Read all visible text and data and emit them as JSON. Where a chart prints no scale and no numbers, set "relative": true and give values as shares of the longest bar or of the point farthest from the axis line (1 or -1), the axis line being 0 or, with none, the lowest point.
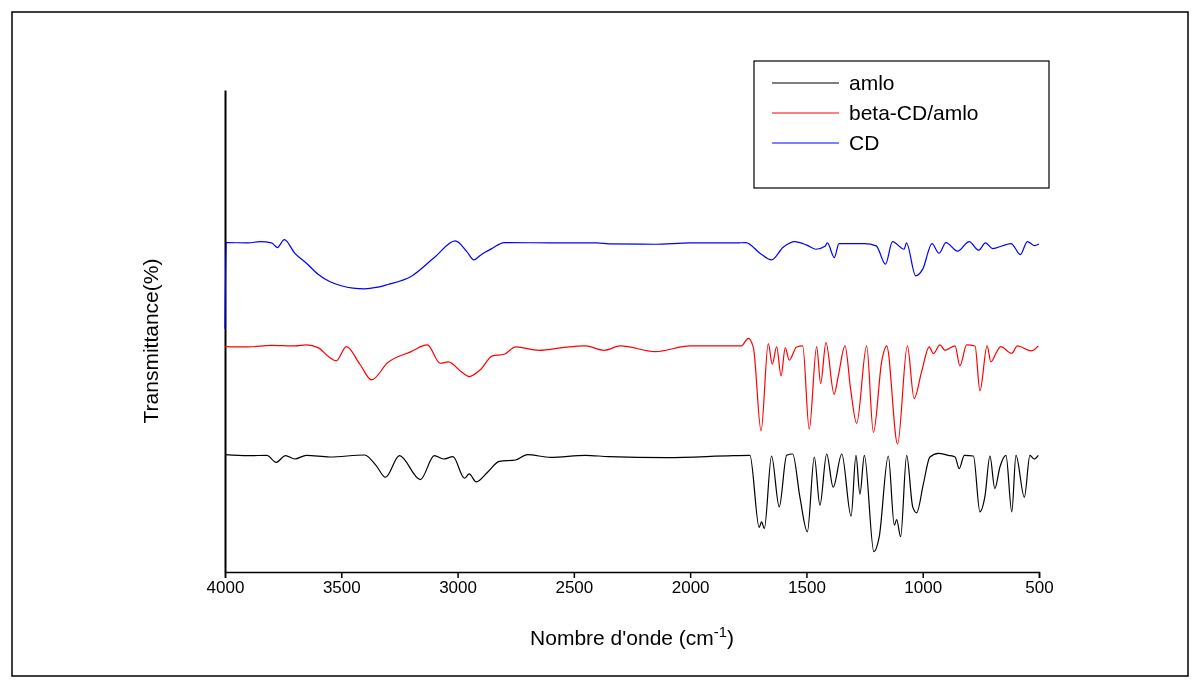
{
  "chart_data": {
    "type": "line",
    "relative": true,
    "xlabel": "Nombre d'onde (cm$^{-1}$)",
    "ylabel": "Transmittance(%)",
    "xlim": [
      4000,
      500
    ],
    "xticks": [
      4000,
      3500,
      3000,
      2500,
      2000,
      1500,
      1000,
      500
    ],
    "legend": "top right",
    "grid": false,
    "marker": "none",
    "line_style": "solid",
    "series": [
      {
        "name": "amlo",
        "color": "#000000",
        "x": [
          4000,
          3900,
          3820,
          3780,
          3740,
          3700,
          3650,
          3550,
          3400,
          3350,
          3310,
          3250,
          3160,
          3100,
          3060,
          3020,
          2970,
          2950,
          2920,
          2870,
          2820,
          2750,
          2700,
          2600,
          2450,
          2350,
          2100,
          1814,
          1743,
          1703,
          1693,
          1681,
          1650,
          1617,
          1585,
          1559,
          1528,
          1496,
          1466,
          1442,
          1413,
          1385,
          1348,
          1308,
          1287,
          1270,
          1251,
          1210,
          1187,
          1148,
          1122,
          1112,
          1095,
          1069,
          1043,
          1026,
          997,
          969,
          933,
          890,
          861,
          843,
          821,
          782,
          754,
          732,
          711,
          690,
          668,
          642,
          617,
          599,
          563,
          539,
          521,
          503
        ],
        "values": [
          0.353,
          0.35,
          0.351,
          0.33,
          0.35,
          0.34,
          0.351,
          0.346,
          0.352,
          0.32,
          0.285,
          0.35,
          0.278,
          0.35,
          0.34,
          0.347,
          0.282,
          0.295,
          0.271,
          0.301,
          0.333,
          0.337,
          0.353,
          0.345,
          0.351,
          0.347,
          0.344,
          0.35,
          0.351,
          0.134,
          0.151,
          0.131,
          0.349,
          0.196,
          0.351,
          0.355,
          0.225,
          0.121,
          0.346,
          0.201,
          0.355,
          0.255,
          0.355,
          0.168,
          0.351,
          0.234,
          0.351,
          0.061,
          0.106,
          0.349,
          0.141,
          0.158,
          0.106,
          0.351,
          0.196,
          0.178,
          0.266,
          0.346,
          0.357,
          0.351,
          0.346,
          0.311,
          0.351,
          0.349,
          0.181,
          0.23,
          0.349,
          0.251,
          0.316,
          0.351,
          0.181,
          0.351,
          0.225,
          0.351,
          0.34,
          0.351
        ]
      },
      {
        "name": "beta-CD/amlo",
        "color": "#ff0000",
        "x": [
          4000,
          3900,
          3800,
          3700,
          3650,
          3600,
          3550,
          3522,
          3478,
          3420,
          3370,
          3300,
          3200,
          3130,
          3075,
          3040,
          2980,
          2950,
          2900,
          2850,
          2800,
          2750,
          2650,
          2550,
          2450,
          2370,
          2300,
          2150,
          2000,
          1800,
          1780,
          1750,
          1728,
          1695,
          1664,
          1647,
          1628,
          1609,
          1591,
          1574,
          1542,
          1516,
          1488,
          1456,
          1439,
          1416,
          1381,
          1363,
          1334,
          1310,
          1284,
          1241,
          1212,
          1176,
          1155,
          1108,
          1066,
          1037,
          1004,
          972,
          954,
          926,
          904,
          861,
          840,
          811,
          775,
          754,
          723,
          707,
          682,
          665,
          617,
          593,
          532,
          503
        ],
        "values": [
          0.678,
          0.677,
          0.682,
          0.68,
          0.683,
          0.675,
          0.645,
          0.635,
          0.678,
          0.625,
          0.578,
          0.63,
          0.663,
          0.683,
          0.628,
          0.632,
          0.6,
          0.588,
          0.61,
          0.65,
          0.655,
          0.677,
          0.667,
          0.675,
          0.68,
          0.667,
          0.68,
          0.663,
          0.68,
          0.68,
          0.68,
          0.703,
          0.675,
          0.425,
          0.687,
          0.625,
          0.677,
          0.59,
          0.675,
          0.637,
          0.677,
          0.68,
          0.43,
          0.678,
          0.567,
          0.69,
          0.535,
          0.59,
          0.68,
          0.55,
          0.447,
          0.68,
          0.42,
          0.635,
          0.68,
          0.385,
          0.68,
          0.522,
          0.605,
          0.677,
          0.657,
          0.683,
          0.667,
          0.68,
          0.62,
          0.683,
          0.68,
          0.545,
          0.68,
          0.632,
          0.662,
          0.678,
          0.658,
          0.68,
          0.665,
          0.68
        ]
      },
      {
        "name": "CD",
        "color": "#0000ff",
        "x": [
          4000,
          3995,
          3900,
          3850,
          3800,
          3775,
          3745,
          3700,
          3650,
          3600,
          3550,
          3500,
          3450,
          3400,
          3350,
          3300,
          3200,
          3100,
          3010,
          2960,
          2930,
          2900,
          2850,
          2800,
          2600,
          2400,
          2350,
          2150,
          2000,
          1800,
          1760,
          1700,
          1650,
          1600,
          1550,
          1500,
          1460,
          1420,
          1410,
          1380,
          1360,
          1300,
          1250,
          1200,
          1160,
          1130,
          1080,
          1070,
          1030,
          1000,
          960,
          930,
          900,
          850,
          800,
          760,
          730,
          700,
          620,
          580,
          550,
          520,
          500
        ],
        "values": [
          0.731,
          0.991,
          0.99,
          0.994,
          0.99,
          0.976,
          1,
          0.959,
          0.929,
          0.896,
          0.874,
          0.861,
          0.854,
          0.852,
          0.856,
          0.865,
          0.889,
          0.946,
          0.996,
          0.964,
          0.939,
          0.954,
          0.974,
          0.991,
          0.99,
          0.99,
          0.987,
          0.986,
          0.99,
          0.99,
          0.991,
          0.959,
          0.939,
          0.977,
          0.994,
          0.984,
          0.971,
          0.98,
          0.99,
          0.946,
          0.988,
          0.988,
          0.988,
          0.981,
          0.926,
          0.994,
          0.971,
          0.99,
          0.891,
          0.911,
          0.988,
          0.959,
          0.991,
          0.965,
          0.994,
          0.968,
          0.99,
          0.973,
          0.988,
          0.955,
          0.994,
          0.982,
          0.987
        ]
      }
    ]
  }
}
